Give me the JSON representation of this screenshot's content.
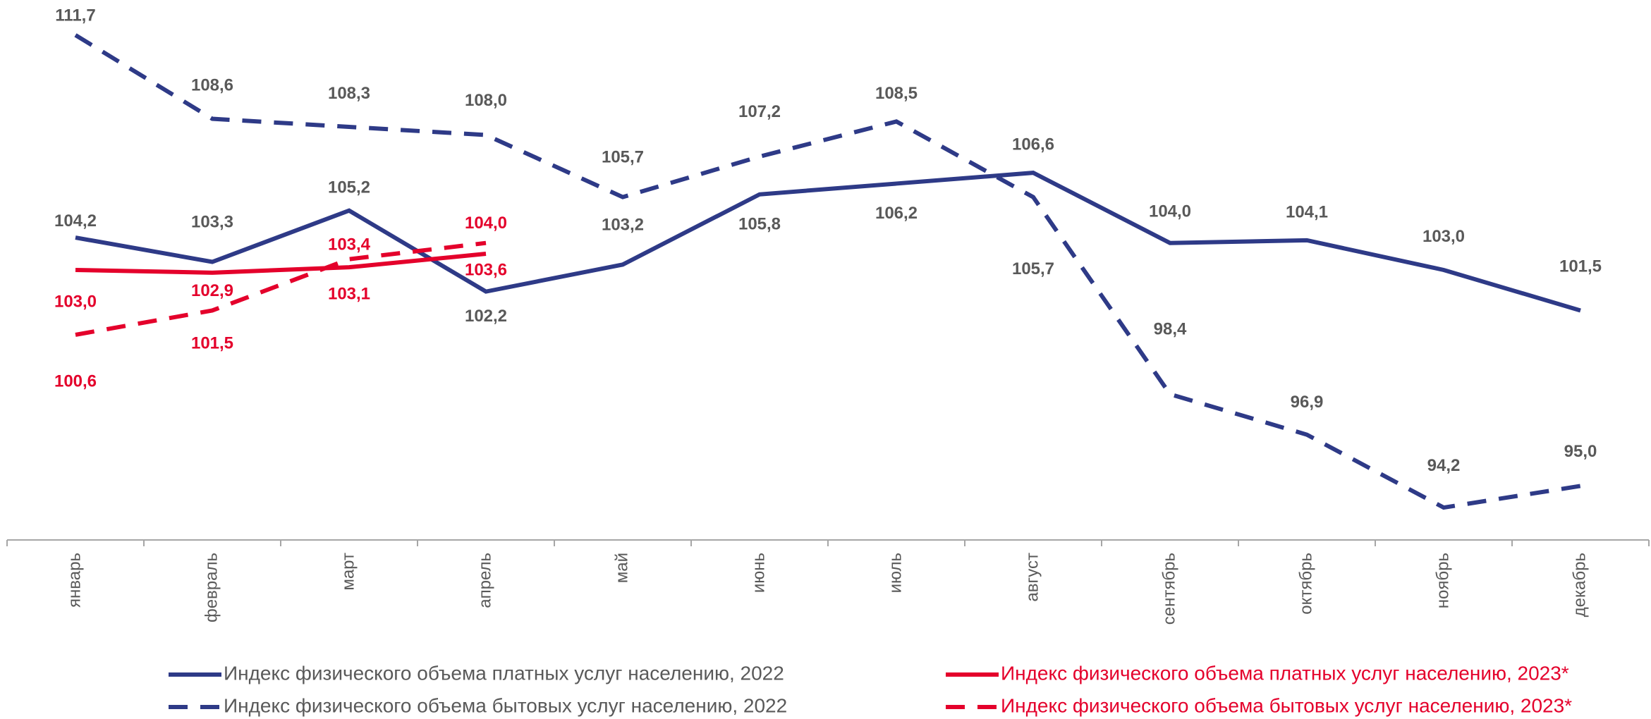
{
  "chart_data": {
    "type": "line",
    "categories": [
      "январь",
      "февраль",
      "март",
      "апрель",
      "май",
      "июнь",
      "июль",
      "август",
      "сентябрь",
      "октябрь",
      "ноябрь",
      "декабрь"
    ],
    "ylim": [
      93,
      113
    ],
    "legend": "bottom",
    "series": [
      {
        "name": "Индекс физического объема платных услуг населению, 2022",
        "color": "#2e3a87",
        "dashed": false,
        "values": [
          104.2,
          103.3,
          105.2,
          102.2,
          103.2,
          105.8,
          106.2,
          106.6,
          104.0,
          104.1,
          103.0,
          101.5
        ],
        "value_labels": [
          "104,2",
          "103,3",
          "105,2",
          "102,2",
          "103,2",
          "105,8",
          "106,2",
          "106,6",
          "104,0",
          "104,1",
          "103,0",
          "101,5"
        ]
      },
      {
        "name": "Индекс физического объема бытовых услуг населению, 2022",
        "color": "#2e3a87",
        "dashed": true,
        "values": [
          111.7,
          108.6,
          108.3,
          108.0,
          105.7,
          107.2,
          108.5,
          105.7,
          98.4,
          96.9,
          94.2,
          95.0
        ],
        "value_labels": [
          "111,7",
          "108,6",
          "108,3",
          "108,0",
          "105,7",
          "107,2",
          "108,5",
          "105,7",
          "98,4",
          "96,9",
          "94,2",
          "95,0"
        ]
      },
      {
        "name": "Индекс физического объема платных услуг населению, 2023*",
        "color": "#e4002b",
        "dashed": false,
        "values": [
          103.0,
          102.9,
          103.1,
          103.6,
          null,
          null,
          null,
          null,
          null,
          null,
          null,
          null
        ],
        "value_labels": [
          "103,0",
          "102,9",
          "103,1",
          "103,6",
          null,
          null,
          null,
          null,
          null,
          null,
          null,
          null
        ]
      },
      {
        "name": "Индекс физического объема бытовых услуг населению, 2023*",
        "color": "#e4002b",
        "dashed": true,
        "values": [
          100.6,
          101.5,
          103.4,
          104.0,
          null,
          null,
          null,
          null,
          null,
          null,
          null,
          null
        ],
        "value_labels": [
          "100,6",
          "101,5",
          "103,4",
          "104,0",
          null,
          null,
          null,
          null,
          null,
          null,
          null,
          null
        ]
      }
    ]
  }
}
